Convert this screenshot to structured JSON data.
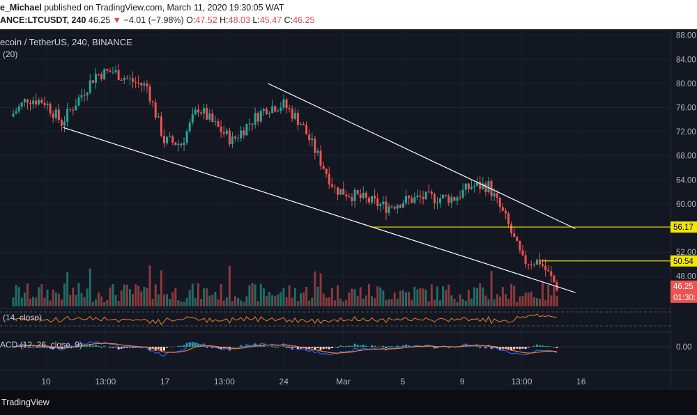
{
  "header": {
    "publisher": "e_Michael",
    "published_text": "published on TradingView.com, March 11, 2020 19:30:05 WAT",
    "symbol": "ANCE:LTCUSDT, 240",
    "last": "46.25",
    "change_arrow": "▼",
    "change": "−4.01 (−7.98%)",
    "o_label": "O:",
    "o_val": "47.52",
    "h_label": "H:",
    "h_val": "48.03",
    "l_label": "L:",
    "l_val": "45.47",
    "c_label": "C:",
    "c_val": "46.25"
  },
  "chart_title": "ecoin / TetherUS, 240, BINANCE",
  "bb_label": "(20)",
  "rsi_label": "(14, close)",
  "macd_label": "ACD (12, 26, close, 9)",
  "footer": {
    "brand": "TradingView"
  },
  "colors": {
    "up": "#26a69a",
    "down": "#ef5350",
    "trend": "#ffffff",
    "level": "#f2e600",
    "rsi": "#f57f20",
    "macd": "#2962ff",
    "signal": "#f57f20",
    "bg": "#131722"
  },
  "chart_data": {
    "type": "candlestick",
    "price_axis": {
      "ticks": [
        "88.00",
        "84.00",
        "80.00",
        "76.00",
        "72.00",
        "68.00",
        "64.00",
        "60.00",
        "52.00",
        "48.00"
      ],
      "ylim": [
        43,
        89
      ]
    },
    "time_axis": [
      "10",
      "13:00",
      "17",
      "13:00",
      "24",
      "Mar",
      "5",
      "9",
      "13:00",
      "16"
    ],
    "levels": [
      {
        "label": "56.17",
        "value": 56.17
      },
      {
        "label": "50.54",
        "value": 50.54
      }
    ],
    "last_price_label": "46.25",
    "countdown_label": "01:30:",
    "macd_axis": {
      "ticks": [
        "0.00"
      ]
    },
    "trendlines": [
      {
        "name": "upper",
        "points": [
          [
            "Feb 23",
            80.0
          ],
          [
            "Mar 12",
            55.9
          ]
        ]
      },
      {
        "name": "lower",
        "points": [
          [
            "Feb 11",
            72.7
          ],
          [
            "Mar 12",
            45.3
          ]
        ]
      }
    ],
    "close_path": [
      [
        "Feb 8",
        74.5
      ],
      [
        "Feb 9",
        77.5
      ],
      [
        "Feb 10",
        77.0
      ],
      [
        "Feb 11",
        73.5
      ],
      [
        "Feb 12",
        77.5
      ],
      [
        "Feb 13",
        81.5
      ],
      [
        "Feb 14",
        82.0
      ],
      [
        "Feb 15",
        80.5
      ],
      [
        "Feb 16",
        79.5
      ],
      [
        "Feb 17",
        70.5
      ],
      [
        "Feb 18",
        70.0
      ],
      [
        "Feb 19",
        76.0
      ],
      [
        "Feb 20",
        73.0
      ],
      [
        "Feb 21",
        70.5
      ],
      [
        "Feb 22",
        73.5
      ],
      [
        "Feb 23",
        76.0
      ],
      [
        "Feb 24",
        76.5
      ],
      [
        "Feb 25",
        73.5
      ],
      [
        "Feb 26",
        68.0
      ],
      [
        "Feb 27",
        62.5
      ],
      [
        "Feb 28",
        61.5
      ],
      [
        "Feb 29",
        60.5
      ],
      [
        "Mar 1",
        59.5
      ],
      [
        "Mar 2",
        60.5
      ],
      [
        "Mar 3",
        61.0
      ],
      [
        "Mar 4",
        61.0
      ],
      [
        "Mar 5",
        61.0
      ],
      [
        "Mar 6",
        63.0
      ],
      [
        "Mar 7",
        63.0
      ],
      [
        "Mar 8",
        57.5
      ],
      [
        "Mar 9",
        50.5
      ],
      [
        "Mar 10",
        50.5
      ],
      [
        "Mar 11",
        46.25
      ]
    ]
  }
}
